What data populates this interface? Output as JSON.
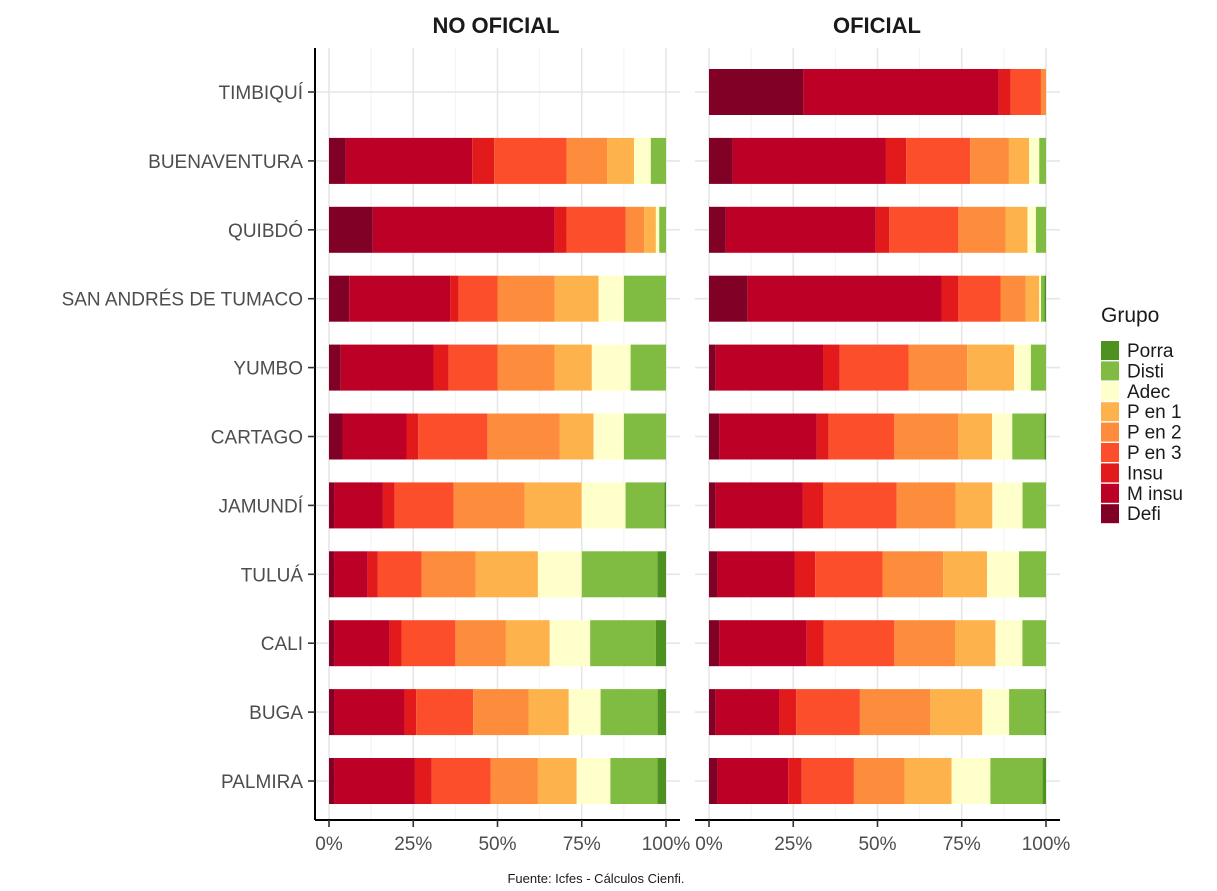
{
  "chart_data": {
    "type": "bar",
    "orientation": "horizontal",
    "stacked": "percent",
    "facets": [
      "NO OFICIAL",
      "OFICIAL"
    ],
    "categories": [
      "TIMBIQUÍ",
      "BUENAVENTURA",
      "QUIBDÓ",
      "SAN ANDRÉS DE TUMACO",
      "YUMBO",
      "CARTAGO",
      "JAMUNDÍ",
      "TULUÁ",
      "CALI",
      "BUGA",
      "PALMIRA"
    ],
    "x_ticks": [
      "0%",
      "25%",
      "50%",
      "75%",
      "100%"
    ],
    "xlim": [
      0,
      100
    ],
    "grid": true,
    "legend": {
      "title": "Grupo",
      "placement": "right",
      "items": [
        "Porra",
        "Disti",
        "Adec",
        "P en 1",
        "P en 2",
        "P en 3",
        "Insu",
        "M insu",
        "Defi"
      ]
    },
    "stack_order": [
      "Defi",
      "M insu",
      "Insu",
      "P en 3",
      "P en 2",
      "P en 1",
      "Adec",
      "Disti",
      "Porra"
    ],
    "colors": {
      "Defi": "#800026",
      "M insu": "#bd0026",
      "Insu": "#e31a1c",
      "P en 3": "#fc4e2a",
      "P en 2": "#fd8d3c",
      "P en 1": "#feb24c",
      "Adec": "#ffffcc",
      "Disti": "#7fbc41",
      "Porra": "#4d9221"
    },
    "series": [
      {
        "facet": "NO OFICIAL",
        "values": {
          "TIMBIQUÍ": null,
          "BUENAVENTURA": [
            5,
            37.5,
            6.5,
            21.5,
            12,
            8,
            5,
            4.5,
            0
          ],
          "QUIBDÓ": [
            13,
            54,
            3.5,
            17.5,
            5.5,
            3.5,
            1,
            2,
            0
          ],
          "SAN ANDRÉS DE TUMACO": [
            6,
            30,
            2.5,
            11.5,
            17,
            13,
            7.5,
            12.5,
            0
          ],
          "YUMBO": [
            3.5,
            27.5,
            4.5,
            14.5,
            17,
            11,
            11.5,
            10.5,
            0
          ],
          "CARTAGO": [
            4,
            19,
            3.5,
            20.5,
            21.5,
            10,
            9,
            12.5,
            0
          ],
          "JAMUNDÍ": [
            1.5,
            14.5,
            3.5,
            17.5,
            21,
            17,
            13,
            11.5,
            0.5
          ],
          "TULUÁ": [
            1.5,
            10,
            3,
            13,
            16,
            18.5,
            13,
            22.5,
            2.5
          ],
          "CALI": [
            1.5,
            16.5,
            3.5,
            16,
            15,
            13,
            12,
            19.5,
            3
          ],
          "BUGA": [
            1.5,
            21,
            3.5,
            17,
            16.5,
            12,
            9.5,
            17,
            2.5
          ],
          "PALMIRA": [
            1.5,
            24,
            5,
            17.5,
            14,
            11.5,
            10,
            14,
            2.5
          ]
        }
      },
      {
        "facet": "OFICIAL",
        "values": {
          "TIMBIQUÍ": [
            28,
            58,
            3.5,
            9,
            1.5,
            0,
            0,
            0,
            0
          ],
          "BUENAVENTURA": [
            7,
            45.5,
            6,
            19,
            11.5,
            6,
            3,
            2,
            0
          ],
          "QUIBDÓ": [
            5,
            44.5,
            4,
            20.5,
            14,
            6.5,
            2.5,
            3,
            0
          ],
          "SAN ANDRÉS DE TUMACO": [
            11.5,
            57.5,
            5,
            12.5,
            7.5,
            4,
            0.5,
            1,
            0.5
          ],
          "YUMBO": [
            2,
            32,
            5,
            20.5,
            17.5,
            14,
            5,
            4.5,
            0
          ],
          "CARTAGO": [
            3,
            29,
            3.5,
            19.5,
            19,
            10,
            6,
            9.5,
            0.5
          ],
          "JAMUNDÍ": [
            2,
            26,
            6,
            22,
            17.5,
            11,
            9,
            7,
            0
          ],
          "TULUÁ": [
            2.5,
            23,
            6,
            20,
            18,
            13,
            9.5,
            8,
            0
          ],
          "CALI": [
            3,
            26,
            5,
            21,
            18,
            12,
            8,
            7,
            0
          ],
          "BUGA": [
            2,
            19,
            5,
            19,
            21,
            15.5,
            8,
            10.5,
            0.5
          ],
          "PALMIRA": [
            2.5,
            21,
            4,
            15.5,
            15,
            14,
            11.5,
            15.5,
            1
          ]
        }
      }
    ],
    "caption": "Fuente: Icfes - Cálculos Cienfi."
  }
}
